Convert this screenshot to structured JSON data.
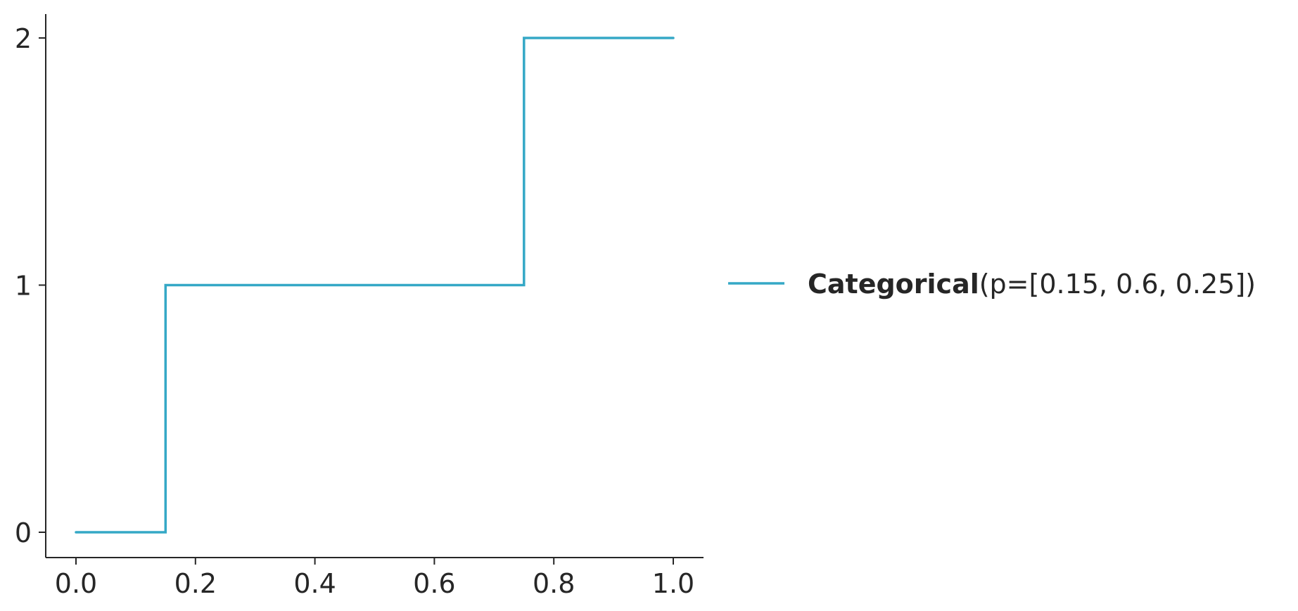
{
  "chart_data": {
    "type": "line",
    "line_style": "step",
    "x": [
      0.0,
      0.15,
      0.15,
      0.75,
      0.75,
      1.0
    ],
    "series": [
      {
        "name": "Categorical(p=[0.15, 0.6, 0.25])",
        "name_bold_part": "Categorical",
        "name_rest": "(p=[0.15, 0.6, 0.25])",
        "color": "#35a8c6",
        "values": [
          0,
          0,
          1,
          1,
          2,
          2
        ]
      }
    ],
    "xlim": [
      -0.05,
      1.05
    ],
    "ylim": [
      -0.1,
      2.1
    ],
    "x_ticks": [
      0.0,
      0.2,
      0.4,
      0.6,
      0.8,
      1.0
    ],
    "x_tick_labels": [
      "0.0",
      "0.2",
      "0.4",
      "0.6",
      "0.8",
      "1.0"
    ],
    "y_ticks": [
      0,
      1,
      2
    ],
    "y_tick_labels": [
      "0",
      "1",
      "2"
    ],
    "title": "",
    "xlabel": "",
    "ylabel": "",
    "grid": false,
    "legend_position": "right"
  }
}
